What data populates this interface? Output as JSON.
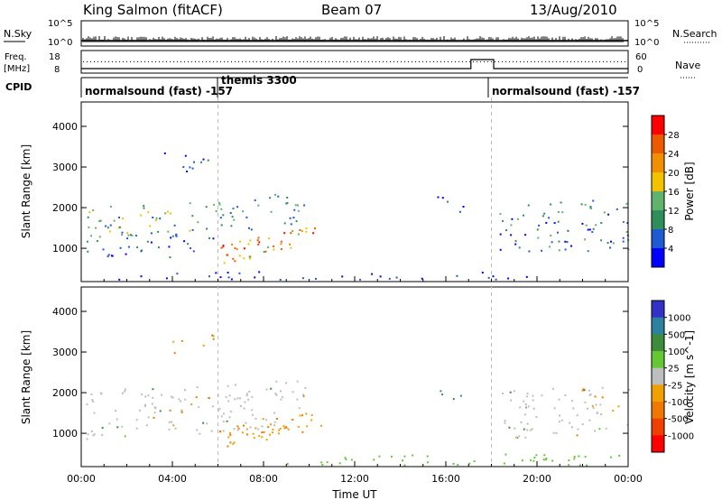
{
  "header": {
    "station": "King Salmon (fitACF)",
    "beam": "Beam 07",
    "date": "13/Aug/2010"
  },
  "nsky_panel": {
    "label": "N.Sky",
    "left_ticks": [
      "10^5",
      "10^0"
    ],
    "right_label": "N.Search",
    "right_ticks": [
      "10^5",
      "10^0"
    ]
  },
  "freq_panel": {
    "label_line1": "Freq.",
    "label_line2": "[MHz]",
    "left_ticks": [
      "18",
      "8"
    ],
    "right_label": "Nave",
    "right_ticks": [
      "60",
      "0"
    ]
  },
  "cpid_panel": {
    "label": "CPID",
    "segments": [
      "normalsound (fast) -157",
      "themis 3300",
      "normalsound (fast) -157"
    ]
  },
  "colors": {
    "power_scale": [
      "#0000ff",
      "#1e5ad2",
      "#2f8f5a",
      "#5fb36a",
      "#f2c200",
      "#f28f00",
      "#ec5a00",
      "#ff0000"
    ],
    "velocity_scale": [
      "#3232c8",
      "#2d82a0",
      "#3c8c3c",
      "#64c832",
      "#bebebe",
      "#f0a000",
      "#f07800",
      "#f04000",
      "#ff0000"
    ],
    "ground_scatter": "#bebebe"
  },
  "chart_data": [
    {
      "type": "heatmap",
      "title": "Power",
      "xlabel": "Time UT",
      "ylabel": "Slant Range [km]",
      "x_ticks": [
        "00:00",
        "04:00",
        "08:00",
        "12:00",
        "16:00",
        "20:00",
        "00:00"
      ],
      "xlim_hours": [
        0,
        24
      ],
      "y_ticks": [
        "1000",
        "2000",
        "3000",
        "4000"
      ],
      "ylim_km": [
        180,
        4600
      ],
      "colorbar_label": "Power [dB]",
      "colorbar_ticks": [
        "4",
        "8",
        "12",
        "16",
        "20",
        "24",
        "28"
      ],
      "colorbar_range": [
        0,
        32
      ],
      "dashed_time_markers_hours": [
        6.0,
        18.0
      ],
      "features": [
        {
          "region": "upper band",
          "t_hours": [
            0.2,
            9.8
          ],
          "range_km": [
            1350,
            2200
          ],
          "power_db": 12
        },
        {
          "region": "lower band",
          "t_hours": [
            0.2,
            6.0
          ],
          "range_km": [
            800,
            1400
          ],
          "power_db": 6
        },
        {
          "region": "far range patch",
          "t_hours": [
            3.5,
            6.2
          ],
          "range_km": [
            2900,
            3500
          ],
          "power_db": 5
        },
        {
          "region": "strong echo",
          "t_hours": [
            6.0,
            10.5
          ],
          "range_km": [
            600,
            1500
          ],
          "power_db": 26
        },
        {
          "region": "isolated echoes",
          "t_hours": [
            15.5,
            17.0
          ],
          "range_km": [
            1700,
            2300
          ],
          "power_db": 8
        },
        {
          "region": "evening bands",
          "t_hours": [
            18.3,
            24.0
          ],
          "range_km": [
            900,
            2200
          ],
          "power_db": 8
        }
      ]
    },
    {
      "type": "heatmap",
      "title": "Velocity",
      "xlabel": "Time UT",
      "ylabel": "Slant Range [km]",
      "x_ticks": [
        "00:00",
        "04:00",
        "08:00",
        "12:00",
        "16:00",
        "20:00",
        "00:00"
      ],
      "xlim_hours": [
        0,
        24
      ],
      "y_ticks": [
        "1000",
        "2000",
        "3000",
        "4000"
      ],
      "ylim_km": [
        180,
        4600
      ],
      "colorbar_label": "Velocity [m s^-1]",
      "colorbar_ticks": [
        "1000",
        "500",
        "100",
        "25",
        "-25",
        "-100",
        "-500",
        "-1000"
      ],
      "dashed_time_markers_hours": [
        6.0,
        18.0
      ],
      "features": [
        {
          "region": "ground scatter band",
          "t_hours": [
            0.2,
            9.8
          ],
          "range_km": [
            1000,
            2200
          ],
          "velocity_ms": 0
        },
        {
          "region": "receding echo",
          "t_hours": [
            6.0,
            10.5
          ],
          "range_km": [
            600,
            1500
          ],
          "velocity_ms": -100
        },
        {
          "region": "near range",
          "t_hours": [
            9.0,
            24.0
          ],
          "range_km": [
            200,
            500
          ],
          "velocity_ms": 100
        },
        {
          "region": "evening ground scatter",
          "t_hours": [
            18.3,
            24.0
          ],
          "range_km": [
            900,
            2200
          ],
          "velocity_ms": 0
        }
      ]
    }
  ]
}
